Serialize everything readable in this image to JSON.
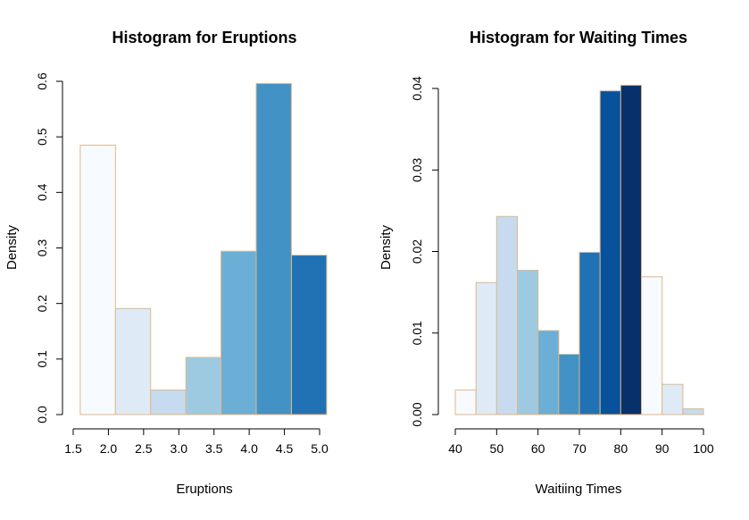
{
  "chart_data": [
    {
      "type": "bar",
      "title": "Histogram for Eruptions",
      "xlabel": "Eruptions",
      "ylabel": "Density",
      "bin_edges": [
        1.6,
        2.1,
        2.6,
        3.1,
        3.6,
        4.1,
        4.6,
        5.1
      ],
      "values": [
        0.485,
        0.191,
        0.044,
        0.103,
        0.294,
        0.596,
        0.287
      ],
      "colors": [
        "#F7FBFF",
        "#DEEBF7",
        "#C6DBEF",
        "#9ECAE1",
        "#6BAED6",
        "#4292C6",
        "#2171B5"
      ],
      "border_color": "#DEB887",
      "xlim": [
        1.5,
        5.0
      ],
      "ylim": [
        0,
        0.6
      ],
      "xticks": [
        "1.5",
        "2.0",
        "2.5",
        "3.0",
        "3.5",
        "4.0",
        "4.5",
        "5.0"
      ],
      "yticks": [
        "0.0",
        "0.1",
        "0.2",
        "0.3",
        "0.4",
        "0.5",
        "0.6"
      ],
      "grid": false
    },
    {
      "type": "bar",
      "title": "Histogram for Waiting Times",
      "xlabel": "Waitiing Times",
      "ylabel": "Density",
      "bin_edges": [
        40,
        45,
        50,
        55,
        60,
        65,
        70,
        75,
        80,
        85,
        90,
        95,
        100
      ],
      "values": [
        0.003,
        0.0162,
        0.0243,
        0.0177,
        0.0103,
        0.0074,
        0.0199,
        0.0397,
        0.0404,
        0.0169,
        0.0037,
        0.0007
      ],
      "colors": [
        "#F7FBFF",
        "#DEEBF7",
        "#C6DBEF",
        "#9ECAE1",
        "#6BAED6",
        "#4292C6",
        "#2171B5",
        "#08519C",
        "#08306B",
        "#F7FBFF",
        "#DEEBF7",
        "#C6DBEF"
      ],
      "border_color": "#DEB887",
      "xlim": [
        40,
        100
      ],
      "ylim": [
        0,
        0.04
      ],
      "xticks": [
        "40",
        "50",
        "60",
        "70",
        "80",
        "90",
        "100"
      ],
      "yticks": [
        "0.00",
        "0.01",
        "0.02",
        "0.03",
        "0.04"
      ],
      "grid": false
    }
  ]
}
